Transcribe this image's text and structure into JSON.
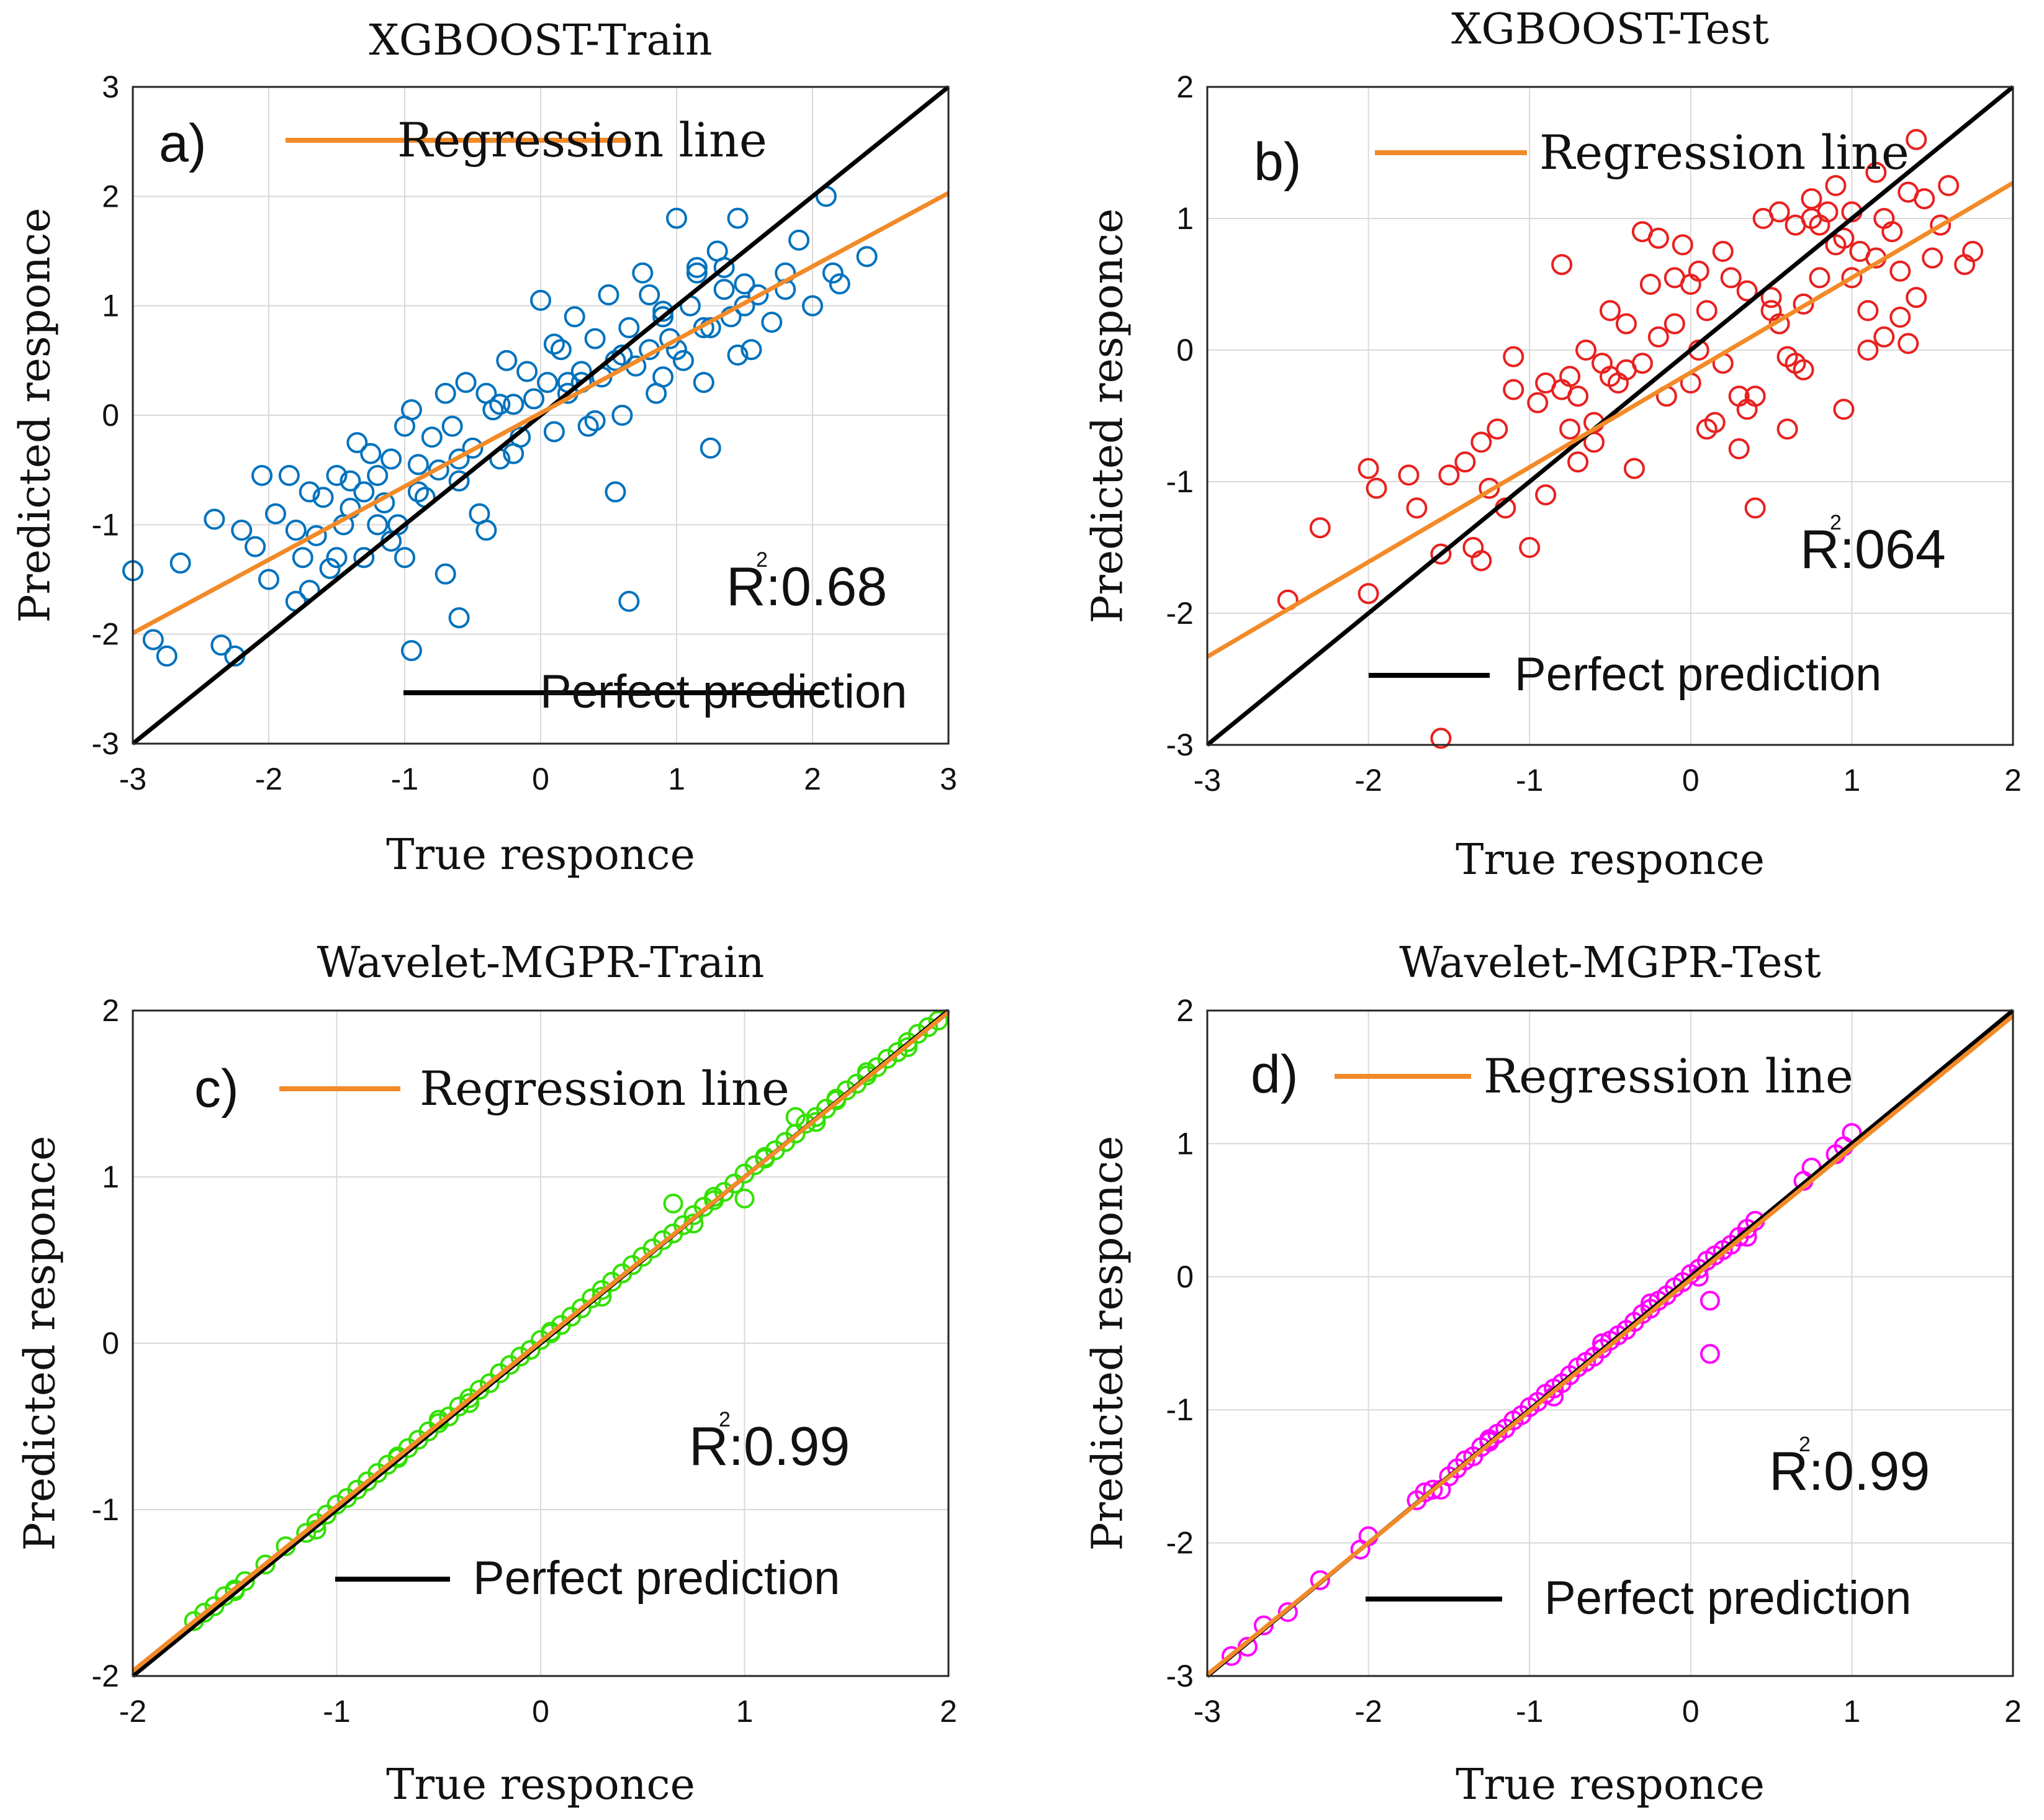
{
  "chart_data": [
    {
      "type": "scatter",
      "panel_label": "a)",
      "title": "XGBOOST-Train",
      "xlabel": "True responce",
      "ylabel": "Predicted responce",
      "xlim": [
        -3,
        3
      ],
      "ylim": [
        -3,
        3
      ],
      "xticks": [
        -3,
        -2,
        -1,
        0,
        1,
        2,
        3
      ],
      "yticks": [
        -3,
        -2,
        -1,
        0,
        1,
        2,
        3
      ],
      "grid": true,
      "marker_color": "#0072BD",
      "regression_slope": 0.67,
      "regression_intercept": 0.02,
      "r2_label": "R",
      "r2_superscript": "2",
      "r2_value": ":0.68",
      "legend_regression": "Regression line",
      "legend_perfect": "Perfect prediction",
      "series": [
        {
          "name": "Train",
          "x": [
            -3.0,
            -2.85,
            -2.75,
            -2.65,
            -2.4,
            -2.35,
            -2.25,
            -2.2,
            -2.1,
            -2.05,
            -2.0,
            -1.95,
            -1.85,
            -1.8,
            -1.75,
            -1.7,
            -1.7,
            -1.65,
            -1.6,
            -1.55,
            -1.5,
            -1.45,
            -1.4,
            -1.35,
            -1.3,
            -1.3,
            -1.25,
            -1.2,
            -1.15,
            -1.1,
            -1.05,
            -1.0,
            -1.0,
            -0.95,
            -0.9,
            -0.85,
            -0.8,
            -0.75,
            -0.7,
            -0.65,
            -0.6,
            -0.55,
            -0.5,
            -0.45,
            -0.4,
            -0.35,
            -0.3,
            -0.25,
            -0.2,
            -0.15,
            -0.1,
            -0.05,
            0.0,
            0.05,
            0.1,
            0.15,
            0.2,
            0.25,
            0.3,
            0.35,
            0.4,
            0.45,
            0.5,
            0.55,
            0.6,
            0.65,
            0.7,
            0.75,
            0.8,
            0.85,
            0.9,
            0.95,
            1.0,
            1.05,
            1.1,
            1.15,
            1.2,
            1.25,
            1.3,
            1.35,
            1.4,
            1.45,
            1.5,
            1.55,
            1.6,
            1.7,
            1.8,
            1.9,
            2.0,
            2.1,
            2.2,
            2.4,
            -1.8,
            -1.5,
            -1.2,
            -0.9,
            -0.6,
            -0.3,
            0.3,
            0.6,
            0.9,
            1.2,
            1.5,
            1.8,
            -0.95,
            -0.6,
            0.55,
            0.65,
            1.25,
            -0.7,
            -0.4,
            0.1,
            0.4,
            0.8,
            1.0,
            1.35,
            1.45,
            2.15,
            -1.4,
            -1.1,
            -0.2,
            0.2,
            0.9,
            1.15
          ],
          "y": [
            -1.42,
            -2.05,
            -2.2,
            -1.35,
            -0.95,
            -2.1,
            -2.2,
            -1.05,
            -1.2,
            -0.55,
            -1.5,
            -0.9,
            -0.55,
            -1.05,
            -1.3,
            -0.7,
            -1.6,
            -1.1,
            -0.75,
            -1.4,
            -0.55,
            -1.0,
            -0.6,
            -0.25,
            -0.7,
            -1.3,
            -0.35,
            -0.55,
            -0.8,
            -0.4,
            -1.0,
            -0.1,
            -1.3,
            0.05,
            -0.45,
            -0.75,
            -0.2,
            -0.5,
            0.2,
            -0.1,
            -0.6,
            0.3,
            -0.3,
            -0.9,
            0.2,
            0.05,
            -0.4,
            0.5,
            0.1,
            -0.2,
            0.4,
            0.15,
            1.05,
            0.3,
            -0.15,
            0.6,
            0.2,
            0.9,
            0.4,
            -0.1,
            0.7,
            0.35,
            1.1,
            0.5,
            0.0,
            0.8,
            0.45,
            1.3,
            0.6,
            0.2,
            0.95,
            0.7,
            1.8,
            0.5,
            1.0,
            1.35,
            0.3,
            0.8,
            1.5,
            1.15,
            0.9,
            1.8,
            1.2,
            0.6,
            1.1,
            0.85,
            1.3,
            1.6,
            1.0,
            2.0,
            1.2,
            1.45,
            -1.7,
            -1.3,
            -1.0,
            -0.7,
            -0.4,
            0.1,
            0.3,
            0.55,
            0.35,
            0.8,
            1.0,
            1.15,
            -2.15,
            -1.85,
            -0.7,
            -1.7,
            -0.3,
            -1.45,
            -1.05,
            0.65,
            -0.05,
            1.1,
            0.6,
            1.35,
            0.55,
            1.3,
            -0.85,
            -1.15,
            -0.35,
            0.3,
            0.9,
            1.3
          ]
        }
      ]
    },
    {
      "type": "scatter",
      "panel_label": "b)",
      "title": "XGBOOST-Test",
      "xlabel": "True responce",
      "ylabel": "Predicted responce",
      "xlim": [
        -3,
        2
      ],
      "ylim": [
        -3,
        2
      ],
      "xticks": [
        -3,
        -2,
        -1,
        0,
        1,
        2
      ],
      "yticks": [
        -3,
        -2,
        -1,
        0,
        1,
        2
      ],
      "grid": true,
      "marker_color": "#E8211F",
      "regression_slope": 0.72,
      "regression_intercept": -0.17,
      "r2_label": "R",
      "r2_superscript": "2",
      "r2_value": ":064",
      "legend_regression": "Regression line",
      "legend_perfect": "Perfect prediction",
      "series": [
        {
          "name": "Test",
          "x": [
            -2.5,
            -2.3,
            -2.0,
            -2.0,
            -1.95,
            -1.75,
            -1.7,
            -1.55,
            -1.5,
            -1.4,
            -1.35,
            -1.3,
            -1.3,
            -1.25,
            -1.2,
            -1.15,
            -1.1,
            -1.0,
            -0.95,
            -0.9,
            -0.8,
            -0.75,
            -0.75,
            -0.7,
            -0.65,
            -0.6,
            -0.55,
            -0.5,
            -0.45,
            -0.4,
            -0.35,
            -0.3,
            -0.25,
            -0.2,
            -0.15,
            -0.1,
            -0.05,
            0.0,
            0.05,
            0.1,
            0.15,
            0.2,
            0.25,
            0.3,
            0.35,
            0.4,
            0.45,
            0.5,
            0.55,
            0.6,
            0.65,
            0.7,
            0.75,
            0.8,
            0.85,
            0.9,
            0.95,
            1.0,
            1.05,
            1.1,
            1.15,
            1.2,
            1.25,
            1.3,
            1.35,
            1.4,
            1.45,
            1.5,
            1.55,
            1.6,
            1.7,
            1.75,
            -1.55,
            -0.7,
            -0.5,
            -0.3,
            0.0,
            0.2,
            0.35,
            0.55,
            0.7,
            0.9,
            1.1,
            1.3,
            -0.8,
            -0.6,
            -0.4,
            -0.2,
            0.1,
            0.3,
            0.5,
            0.8,
            1.0,
            1.2,
            1.4,
            -1.1,
            -0.9,
            0.6,
            0.75,
            0.95,
            1.15,
            1.35,
            -0.1,
            0.05,
            0.4,
            0.65
          ],
          "y": [
            -1.9,
            -1.35,
            -0.9,
            -1.85,
            -1.05,
            -0.95,
            -1.2,
            -1.55,
            -0.95,
            -0.85,
            -1.5,
            -0.7,
            -1.6,
            -1.05,
            -0.6,
            -1.2,
            -0.3,
            -1.5,
            -0.4,
            -1.1,
            0.65,
            -0.6,
            -0.2,
            -0.35,
            0.0,
            -0.7,
            -0.1,
            0.3,
            -0.25,
            0.2,
            -0.9,
            -0.1,
            0.5,
            0.85,
            -0.35,
            0.55,
            0.8,
            0.5,
            0.0,
            0.3,
            -0.55,
            0.75,
            0.55,
            -0.75,
            0.45,
            -1.2,
            1.0,
            0.4,
            1.05,
            -0.6,
            0.95,
            0.35,
            1.15,
            0.55,
            1.05,
            1.25,
            0.85,
            1.05,
            0.75,
            0.3,
            1.35,
            1.0,
            0.9,
            0.25,
            1.2,
            1.6,
            1.15,
            0.7,
            0.95,
            1.25,
            0.65,
            0.75,
            -2.95,
            -0.85,
            -0.2,
            0.9,
            -0.25,
            -0.1,
            -0.45,
            0.2,
            -0.15,
            0.8,
            0.0,
            0.6,
            -0.3,
            -0.55,
            -0.15,
            0.1,
            -0.6,
            -0.35,
            0.3,
            0.95,
            0.55,
            0.1,
            0.4,
            -0.05,
            -0.25,
            -0.05,
            1.0,
            -0.45,
            0.7,
            0.05,
            0.2,
            0.6,
            -0.35,
            -0.1
          ]
        }
      ]
    },
    {
      "type": "scatter",
      "panel_label": "c)",
      "title": "Wavelet-MGPR-Train",
      "xlabel": "True responce",
      "ylabel": "Predicted responce",
      "xlim": [
        -2,
        2
      ],
      "ylim": [
        -2,
        2
      ],
      "xticks": [
        -2,
        -1,
        0,
        1,
        2
      ],
      "yticks": [
        -2,
        -1,
        0,
        1,
        2
      ],
      "grid": true,
      "marker_color": "#33E000",
      "regression_slope": 0.99,
      "regression_intercept": 0.01,
      "r2_label": "R",
      "r2_superscript": "2",
      "r2_value": ":0.99",
      "legend_regression": "Regression line",
      "legend_perfect": "Perfect prediction",
      "series": [
        {
          "name": "Train",
          "x": [
            -1.7,
            -1.65,
            -1.6,
            -1.55,
            -1.5,
            -1.45,
            -1.35,
            -1.25,
            -1.15,
            -1.1,
            -1.05,
            -1.0,
            -0.95,
            -0.9,
            -0.85,
            -0.8,
            -0.75,
            -0.7,
            -0.65,
            -0.6,
            -0.55,
            -0.5,
            -0.45,
            -0.4,
            -0.35,
            -0.3,
            -0.25,
            -0.2,
            -0.15,
            -0.1,
            -0.05,
            0.0,
            0.05,
            0.1,
            0.15,
            0.2,
            0.25,
            0.3,
            0.35,
            0.4,
            0.45,
            0.5,
            0.55,
            0.6,
            0.65,
            0.7,
            0.75,
            0.8,
            0.85,
            0.9,
            0.95,
            1.0,
            1.05,
            1.1,
            1.15,
            1.2,
            1.25,
            1.3,
            1.35,
            1.4,
            1.45,
            1.5,
            1.55,
            1.6,
            1.65,
            1.7,
            1.75,
            1.8,
            1.85,
            1.9,
            1.95,
            -1.5,
            -1.1,
            -0.7,
            -0.35,
            0.05,
            0.4,
            0.75,
            1.1,
            1.45,
            1.8,
            0.65,
            1.0,
            1.25,
            -0.5,
            0.3,
            0.85,
            1.35,
            1.6
          ],
          "y": [
            -1.67,
            -1.62,
            -1.58,
            -1.52,
            -1.48,
            -1.43,
            -1.33,
            -1.22,
            -1.14,
            -1.08,
            -1.03,
            -0.97,
            -0.93,
            -0.88,
            -0.83,
            -0.78,
            -0.73,
            -0.68,
            -0.63,
            -0.58,
            -0.53,
            -0.48,
            -0.44,
            -0.38,
            -0.33,
            -0.28,
            -0.24,
            -0.18,
            -0.13,
            -0.08,
            -0.04,
            0.02,
            0.06,
            0.11,
            0.16,
            0.21,
            0.27,
            0.32,
            0.37,
            0.42,
            0.47,
            0.52,
            0.57,
            0.62,
            0.66,
            0.71,
            0.77,
            0.82,
            0.86,
            0.91,
            0.96,
            1.02,
            1.07,
            1.11,
            1.16,
            1.21,
            1.26,
            1.32,
            1.36,
            1.41,
            1.46,
            1.52,
            1.56,
            1.61,
            1.66,
            1.71,
            1.75,
            1.81,
            1.86,
            1.9,
            1.94,
            -1.49,
            -1.12,
            -0.69,
            -0.36,
            0.07,
            0.42,
            0.72,
            1.12,
            1.47,
            1.78,
            0.84,
            0.87,
            1.36,
            -0.46,
            0.28,
            0.88,
            1.33,
            1.63
          ]
        }
      ]
    },
    {
      "type": "scatter",
      "panel_label": "d)",
      "title": "Wavelet-MGPR-Test",
      "xlabel": "True responce",
      "ylabel": "Predicted responce",
      "xlim": [
        -3,
        2
      ],
      "ylim": [
        -3,
        2
      ],
      "xticks": [
        -3,
        -2,
        -1,
        0,
        1,
        2
      ],
      "yticks": [
        -3,
        -2,
        -1,
        0,
        1,
        2
      ],
      "grid": true,
      "marker_color": "#FF00FF",
      "regression_slope": 0.99,
      "regression_intercept": -0.02,
      "r2_label": "R",
      "r2_superscript": "2",
      "r2_value": ":0.99",
      "legend_regression": "Regression line",
      "legend_perfect": "Perfect prediction",
      "series": [
        {
          "name": "Test",
          "x": [
            -2.85,
            -2.75,
            -2.65,
            -2.5,
            -2.3,
            -2.05,
            -2.0,
            -1.7,
            -1.65,
            -1.6,
            -1.5,
            -1.45,
            -1.4,
            -1.35,
            -1.3,
            -1.25,
            -1.2,
            -1.15,
            -1.1,
            -1.05,
            -1.0,
            -0.95,
            -0.9,
            -0.85,
            -0.8,
            -0.75,
            -0.7,
            -0.65,
            -0.6,
            -0.55,
            -0.5,
            -0.45,
            -0.4,
            -0.35,
            -0.3,
            -0.25,
            -0.2,
            -0.15,
            -0.1,
            -0.05,
            0.0,
            0.05,
            0.1,
            0.15,
            0.2,
            0.25,
            0.3,
            0.35,
            0.4,
            0.7,
            0.75,
            0.9,
            0.95,
            1.0,
            0.12,
            0.12,
            -1.55,
            -1.25,
            -0.85,
            -0.55,
            -0.25,
            0.05,
            0.35
          ],
          "y": [
            -2.85,
            -2.78,
            -2.62,
            -2.52,
            -2.28,
            -2.05,
            -1.95,
            -1.68,
            -1.62,
            -1.6,
            -1.5,
            -1.44,
            -1.38,
            -1.35,
            -1.28,
            -1.24,
            -1.18,
            -1.14,
            -1.08,
            -1.04,
            -0.98,
            -0.94,
            -0.88,
            -0.84,
            -0.8,
            -0.74,
            -0.68,
            -0.64,
            -0.6,
            -0.54,
            -0.48,
            -0.44,
            -0.4,
            -0.34,
            -0.28,
            -0.24,
            -0.18,
            -0.14,
            -0.08,
            -0.04,
            0.02,
            0.06,
            0.12,
            0.16,
            0.2,
            0.24,
            0.3,
            0.36,
            0.42,
            0.72,
            0.82,
            0.92,
            0.98,
            1.08,
            -0.18,
            -0.58,
            -1.6,
            -1.22,
            -0.9,
            -0.5,
            -0.2,
            0.0,
            0.3
          ]
        }
      ]
    }
  ]
}
